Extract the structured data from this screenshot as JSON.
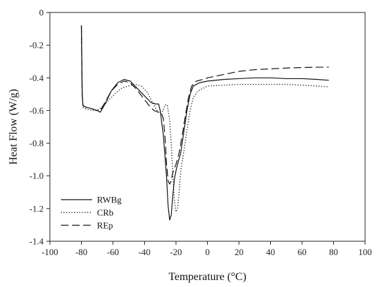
{
  "chart_data": {
    "type": "line",
    "xlabel": "Temperature (°C)",
    "ylabel": "Heat Flow (W/g)",
    "xlim": [
      -100,
      100
    ],
    "ylim": [
      -1.4,
      0
    ],
    "xticks": [
      -100,
      -80,
      -60,
      -40,
      -20,
      0,
      20,
      40,
      60,
      80,
      100
    ],
    "yticks": [
      0,
      -0.2,
      -0.4,
      -0.6,
      -0.8,
      -1.0,
      -1.2,
      -1.4
    ],
    "ytick_labels": [
      "0",
      "-0.2",
      "-0.4",
      "-0.6",
      "-0.8",
      "-1.0",
      "-1.2",
      "-1.4"
    ],
    "grid": false,
    "legend_position": "bottom-left",
    "series": [
      {
        "name": "RWBg",
        "style": "solid",
        "points": [
          [
            -80,
            -0.08
          ],
          [
            -79.5,
            -0.5
          ],
          [
            -79,
            -0.57
          ],
          [
            -77,
            -0.58
          ],
          [
            -73,
            -0.59
          ],
          [
            -70,
            -0.6
          ],
          [
            -68,
            -0.61
          ],
          [
            -65,
            -0.56
          ],
          [
            -61,
            -0.48
          ],
          [
            -57,
            -0.43
          ],
          [
            -53,
            -0.41
          ],
          [
            -49,
            -0.42
          ],
          [
            -45,
            -0.46
          ],
          [
            -40,
            -0.51
          ],
          [
            -36,
            -0.55
          ],
          [
            -33,
            -0.56
          ],
          [
            -31,
            -0.56
          ],
          [
            -30,
            -0.6
          ],
          [
            -28,
            -0.75
          ],
          [
            -26,
            -1.0
          ],
          [
            -25,
            -1.18
          ],
          [
            -24,
            -1.27
          ],
          [
            -23,
            -1.24
          ],
          [
            -22,
            -1.12
          ],
          [
            -21,
            -1.02
          ],
          [
            -20,
            -0.97
          ],
          [
            -19,
            -0.93
          ],
          [
            -17,
            -0.86
          ],
          [
            -15,
            -0.73
          ],
          [
            -13,
            -0.6
          ],
          [
            -11,
            -0.5
          ],
          [
            -9,
            -0.45
          ],
          [
            -5,
            -0.43
          ],
          [
            0,
            -0.42
          ],
          [
            10,
            -0.41
          ],
          [
            20,
            -0.405
          ],
          [
            30,
            -0.4
          ],
          [
            40,
            -0.4
          ],
          [
            50,
            -0.405
          ],
          [
            60,
            -0.405
          ],
          [
            70,
            -0.41
          ],
          [
            77,
            -0.415
          ]
        ]
      },
      {
        "name": "CRb",
        "style": "dotted",
        "points": [
          [
            -80,
            -0.08
          ],
          [
            -79.5,
            -0.5
          ],
          [
            -79,
            -0.58
          ],
          [
            -77,
            -0.59
          ],
          [
            -73,
            -0.6
          ],
          [
            -70,
            -0.6
          ],
          [
            -67,
            -0.58
          ],
          [
            -63,
            -0.54
          ],
          [
            -58,
            -0.49
          ],
          [
            -54,
            -0.46
          ],
          [
            -50,
            -0.45
          ],
          [
            -46,
            -0.44
          ],
          [
            -42,
            -0.45
          ],
          [
            -38,
            -0.49
          ],
          [
            -35,
            -0.55
          ],
          [
            -32,
            -0.6
          ],
          [
            -30,
            -0.62
          ],
          [
            -28,
            -0.6
          ],
          [
            -27,
            -0.565
          ],
          [
            -25.5,
            -0.565
          ],
          [
            -24,
            -0.66
          ],
          [
            -23,
            -0.8
          ],
          [
            -22,
            -1.0
          ],
          [
            -21,
            -1.15
          ],
          [
            -20,
            -1.22
          ],
          [
            -19,
            -1.2
          ],
          [
            -18,
            -1.1
          ],
          [
            -17,
            -0.97
          ],
          [
            -15,
            -0.85
          ],
          [
            -13,
            -0.72
          ],
          [
            -11,
            -0.6
          ],
          [
            -9,
            -0.52
          ],
          [
            -6,
            -0.48
          ],
          [
            0,
            -0.45
          ],
          [
            10,
            -0.445
          ],
          [
            20,
            -0.44
          ],
          [
            30,
            -0.44
          ],
          [
            40,
            -0.44
          ],
          [
            50,
            -0.44
          ],
          [
            60,
            -0.445
          ],
          [
            70,
            -0.45
          ],
          [
            77,
            -0.455
          ]
        ]
      },
      {
        "name": "REp",
        "style": "dashed",
        "points": [
          [
            -80,
            -0.08
          ],
          [
            -79.5,
            -0.5
          ],
          [
            -79,
            -0.57
          ],
          [
            -77,
            -0.58
          ],
          [
            -73,
            -0.59
          ],
          [
            -70,
            -0.6
          ],
          [
            -68,
            -0.6
          ],
          [
            -65,
            -0.55
          ],
          [
            -61,
            -0.48
          ],
          [
            -57,
            -0.44
          ],
          [
            -53,
            -0.42
          ],
          [
            -49,
            -0.43
          ],
          [
            -45,
            -0.47
          ],
          [
            -41,
            -0.52
          ],
          [
            -37,
            -0.57
          ],
          [
            -34,
            -0.6
          ],
          [
            -31,
            -0.61
          ],
          [
            -29,
            -0.62
          ],
          [
            -28,
            -0.65
          ],
          [
            -27,
            -0.75
          ],
          [
            -26,
            -0.92
          ],
          [
            -25,
            -1.03
          ],
          [
            -24,
            -1.05
          ],
          [
            -23,
            -1.03
          ],
          [
            -22,
            -0.98
          ],
          [
            -20,
            -0.93
          ],
          [
            -18,
            -0.86
          ],
          [
            -16,
            -0.75
          ],
          [
            -14,
            -0.63
          ],
          [
            -12,
            -0.52
          ],
          [
            -10,
            -0.45
          ],
          [
            -7,
            -0.42
          ],
          [
            -3,
            -0.41
          ],
          [
            0,
            -0.4
          ],
          [
            10,
            -0.38
          ],
          [
            20,
            -0.36
          ],
          [
            30,
            -0.35
          ],
          [
            40,
            -0.345
          ],
          [
            50,
            -0.34
          ],
          [
            60,
            -0.337
          ],
          [
            70,
            -0.335
          ],
          [
            77,
            -0.335
          ]
        ]
      }
    ]
  }
}
